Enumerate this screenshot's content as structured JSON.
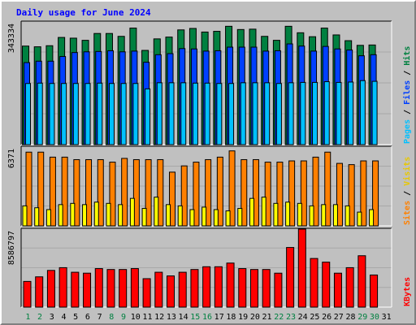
{
  "title": "Daily usage for June 2024",
  "colors": {
    "hits": "#008040",
    "files": "#0040ff",
    "pages": "#00c0ff",
    "visits": "#ff8000",
    "sites": "#ffff00",
    "kbytes": "#ff0000",
    "weekend_label": "#008040",
    "weekday_label": "#000000"
  },
  "chart_data": [
    {
      "type": "bar",
      "panel": "hits-files-pages",
      "y_label_text": "343334",
      "legend": [
        "Pages",
        "/",
        "Files",
        "/",
        "Hits"
      ],
      "ylim": [
        0,
        343334
      ],
      "grid": true,
      "categories": [
        "1",
        "2",
        "3",
        "4",
        "5",
        "6",
        "7",
        "8",
        "9",
        "10",
        "11",
        "12",
        "13",
        "14",
        "15",
        "16",
        "17",
        "18",
        "19",
        "20",
        "21",
        "22",
        "23",
        "24",
        "25",
        "26",
        "27",
        "28",
        "29",
        "30"
      ],
      "series": [
        {
          "name": "Hits",
          "values": [
            274000,
            272000,
            275000,
            298000,
            296000,
            290000,
            309000,
            309000,
            301000,
            324000,
            262000,
            294000,
            299000,
            319000,
            323000,
            313000,
            315000,
            329000,
            320000,
            321000,
            301000,
            290000,
            329000,
            311000,
            300000,
            324000,
            305000,
            289000,
            276000,
            277000
          ]
        },
        {
          "name": "Files",
          "values": [
            228000,
            232000,
            232000,
            245000,
            256000,
            258000,
            259000,
            261000,
            258000,
            260000,
            229000,
            250000,
            253000,
            267000,
            266000,
            260000,
            261000,
            271000,
            271000,
            271000,
            260000,
            261000,
            280000,
            274000,
            260000,
            273000,
            266000,
            263000,
            247000,
            250000
          ]
        },
        {
          "name": "Pages",
          "values": [
            170000,
            171000,
            170000,
            170000,
            170000,
            170000,
            171000,
            170000,
            170000,
            170000,
            155000,
            172000,
            172000,
            172000,
            171000,
            171000,
            170000,
            170000,
            172000,
            172000,
            172000,
            170000,
            172000,
            173000,
            173000,
            175000,
            173000,
            174000,
            178000,
            176000
          ]
        }
      ]
    },
    {
      "type": "bar",
      "panel": "visits-sites",
      "y_label_text": "6371",
      "legend": [
        "Sites",
        "/",
        "Visits"
      ],
      "ylim": [
        0,
        6371
      ],
      "grid": true,
      "categories": [
        "1",
        "2",
        "3",
        "4",
        "5",
        "6",
        "7",
        "8",
        "9",
        "10",
        "11",
        "12",
        "13",
        "14",
        "15",
        "16",
        "17",
        "18",
        "19",
        "20",
        "21",
        "22",
        "23",
        "24",
        "25",
        "26",
        "27",
        "28",
        "29",
        "30"
      ],
      "series": [
        {
          "name": "Visits",
          "values": [
            5900,
            5900,
            5500,
            5500,
            5300,
            5300,
            5300,
            5100,
            5400,
            5300,
            5300,
            5300,
            4300,
            4800,
            5100,
            5300,
            5500,
            6000,
            5300,
            5300,
            5100,
            5100,
            5200,
            5200,
            5500,
            5900,
            5000,
            4900,
            5200,
            5200
          ]
        },
        {
          "name": "Sites",
          "values": [
            1600,
            1450,
            1300,
            1700,
            1800,
            1700,
            1900,
            1800,
            1700,
            2200,
            1400,
            2300,
            1700,
            1600,
            1300,
            1500,
            1300,
            1200,
            1400,
            2200,
            2300,
            1800,
            1900,
            1800,
            1600,
            1700,
            1700,
            1600,
            1100,
            1300
          ]
        }
      ]
    },
    {
      "type": "bar",
      "panel": "kbytes",
      "y_label_text": "8586797",
      "legend": [
        "KBytes"
      ],
      "ylim": [
        0,
        8586797
      ],
      "grid": true,
      "categories": [
        "1",
        "2",
        "3",
        "4",
        "5",
        "6",
        "7",
        "8",
        "9",
        "10",
        "11",
        "12",
        "13",
        "14",
        "15",
        "16",
        "17",
        "18",
        "19",
        "20",
        "21",
        "22",
        "23",
        "24",
        "25",
        "26",
        "27",
        "28",
        "29",
        "30"
      ],
      "series": [
        {
          "name": "KBytes",
          "values": [
            2800000,
            3300000,
            4000000,
            4300000,
            3800000,
            3700000,
            4200000,
            4100000,
            4100000,
            4200000,
            3100000,
            3800000,
            3400000,
            3800000,
            4100000,
            4400000,
            4400000,
            4800000,
            4200000,
            4100000,
            4100000,
            3700000,
            6500000,
            8500000,
            5300000,
            4900000,
            3700000,
            4300000,
            5600000,
            3500000
          ]
        }
      ]
    }
  ],
  "x_axis": {
    "day_labels": [
      "1",
      "2",
      "3",
      "4",
      "5",
      "6",
      "7",
      "8",
      "9",
      "10",
      "11",
      "12",
      "13",
      "14",
      "15",
      "16",
      "17",
      "18",
      "19",
      "20",
      "21",
      "22",
      "23",
      "24",
      "25",
      "26",
      "27",
      "28",
      "29",
      "30",
      "31"
    ],
    "weekend_days": [
      "1",
      "2",
      "8",
      "9",
      "15",
      "16",
      "22",
      "23",
      "29",
      "30"
    ]
  }
}
